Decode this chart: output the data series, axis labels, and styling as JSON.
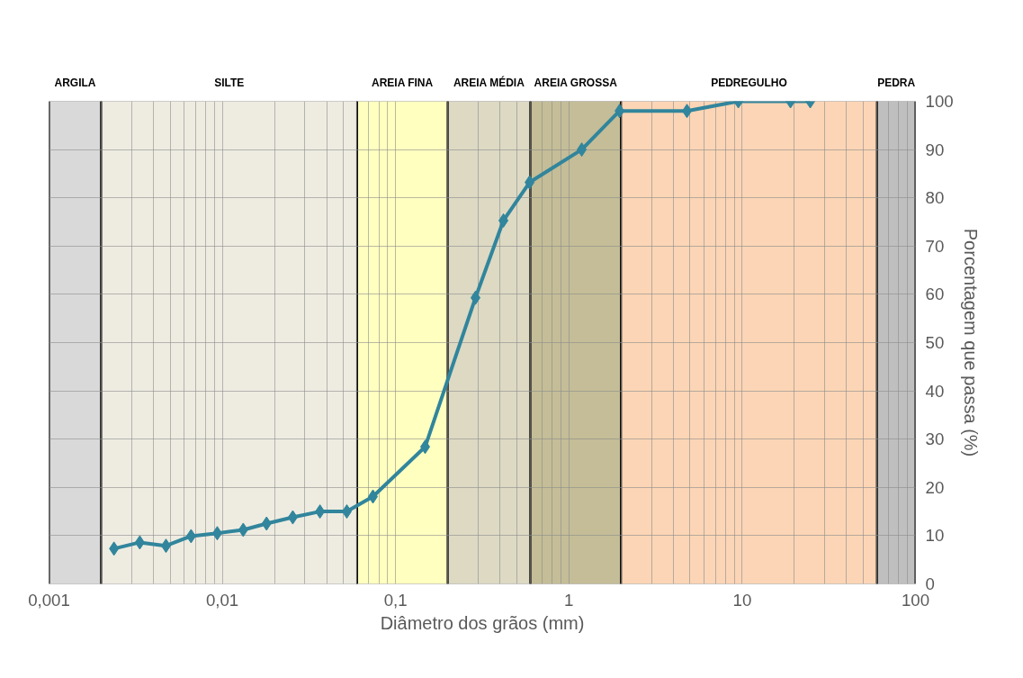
{
  "chart_data": {
    "type": "line",
    "xlabel": "Diâmetro dos grãos (mm)",
    "ylabel": "Porcentagem que passa (%)",
    "log": "x",
    "grid": true,
    "marker": "diamond",
    "line_style": "solid",
    "xlim": [
      0.001,
      100
    ],
    "xticks": [
      {
        "value": 0.001,
        "label": "0,001"
      },
      {
        "value": 0.01,
        "label": "0,01"
      },
      {
        "value": 0.1,
        "label": "0,1"
      },
      1,
      10,
      100
    ],
    "ylim": [
      0,
      100
    ],
    "yticks": [
      0,
      10,
      20,
      30,
      40,
      50,
      60,
      70,
      80,
      90,
      100
    ],
    "series": [
      {
        "color": "#31859c",
        "x": [
          0.00237,
          0.00334,
          0.00473,
          0.0066,
          0.00935,
          0.0132,
          0.018,
          0.0255,
          0.0366,
          0.0523,
          0.074,
          0.148,
          0.289,
          0.419,
          0.593,
          1.186,
          1.96,
          4.8,
          9.5,
          19,
          24.7
        ],
        "values": [
          7.3,
          8.6,
          7.9,
          9.9,
          10.5,
          11.2,
          12.5,
          13.8,
          15,
          15,
          18.1,
          28.4,
          59.3,
          75.3,
          83.2,
          90,
          98,
          98,
          100,
          100,
          100
        ]
      }
    ],
    "bands": [
      {
        "axis": "x",
        "from": 0.001,
        "to": 0.002,
        "label": "ARGILA",
        "color": "#d9d9d9"
      },
      {
        "axis": "x",
        "from": 0.002,
        "to": 0.06,
        "label": "SILTE",
        "color": "#eeece1"
      },
      {
        "axis": "x",
        "from": 0.06,
        "to": 0.2,
        "label": "AREIA FINA",
        "color": "#ffffc0"
      },
      {
        "axis": "x",
        "from": 0.2,
        "to": 0.6,
        "label": "AREIA MÉDIA",
        "color": "#ddd9c3"
      },
      {
        "axis": "x",
        "from": 0.6,
        "to": 2,
        "label": "AREIA GROSSA",
        "color": "#c4bd97"
      },
      {
        "axis": "x",
        "from": 2,
        "to": 60,
        "label": "PEDREGULHO",
        "color": "#fbd5b5"
      },
      {
        "axis": "x",
        "from": 60,
        "to": 100,
        "label": "PEDRA",
        "color": "#bfbfbf"
      }
    ]
  }
}
